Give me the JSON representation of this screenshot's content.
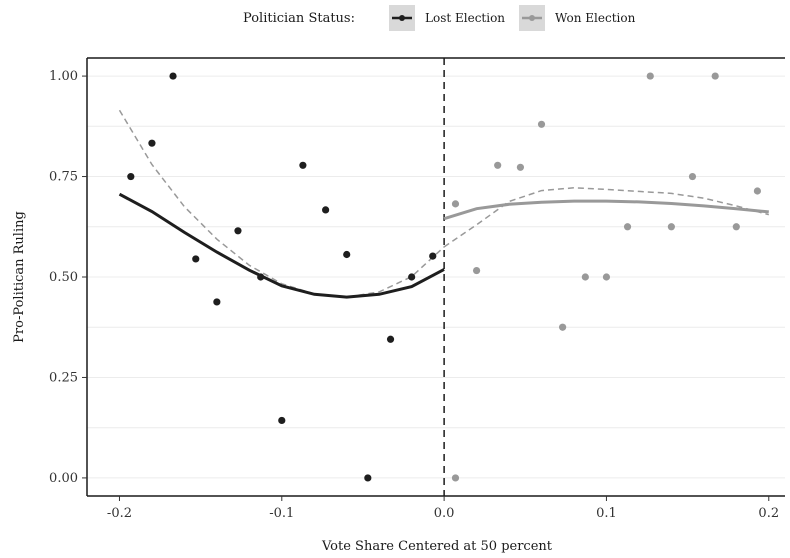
{
  "chart_data": {
    "type": "scatter",
    "title": "",
    "xlabel": "Vote Share Centered at 50 percent",
    "ylabel": "Pro-Politican Ruling",
    "xlim": [
      -0.22,
      0.21
    ],
    "ylim": [
      -0.045,
      1.045
    ],
    "x_ticks": [
      -0.2,
      -0.1,
      0.0,
      0.1,
      0.2
    ],
    "x_tick_labels": [
      "-0.2",
      "-0.1",
      "0.0",
      "0.1",
      "0.2"
    ],
    "y_ticks": [
      0.0,
      0.25,
      0.5,
      0.75,
      1.0
    ],
    "y_tick_labels": [
      "0.00",
      "0.25",
      "0.50",
      "0.75",
      "1.00"
    ],
    "cutoff": 0.0,
    "grid": "horizontal",
    "legend": {
      "position": "top",
      "title": "Politician Status:",
      "items": [
        {
          "label": "Lost Election",
          "color": "#1e1e1e"
        },
        {
          "label": "Won Election",
          "color": "#999999"
        }
      ]
    },
    "series": [
      {
        "name": "Lost Election",
        "color": "#1e1e1e",
        "points": [
          [
            -0.193,
            0.75
          ],
          [
            -0.18,
            0.833
          ],
          [
            -0.167,
            1.0
          ],
          [
            -0.153,
            0.545
          ],
          [
            -0.14,
            0.438
          ],
          [
            -0.127,
            0.615
          ],
          [
            -0.113,
            0.5
          ],
          [
            -0.1,
            0.143
          ],
          [
            -0.087,
            0.778
          ],
          [
            -0.073,
            0.667
          ],
          [
            -0.06,
            0.556
          ],
          [
            -0.047,
            0.0
          ],
          [
            -0.033,
            0.345
          ],
          [
            -0.02,
            0.5
          ],
          [
            -0.007,
            0.552
          ]
        ],
        "fit_solid": [
          [
            -0.2,
            0.706
          ],
          [
            -0.18,
            0.663
          ],
          [
            -0.16,
            0.611
          ],
          [
            -0.14,
            0.562
          ],
          [
            -0.12,
            0.517
          ],
          [
            -0.1,
            0.478
          ],
          [
            -0.08,
            0.457
          ],
          [
            -0.06,
            0.45
          ],
          [
            -0.04,
            0.457
          ],
          [
            -0.02,
            0.476
          ],
          [
            0.0,
            0.519
          ]
        ],
        "fit_dashed": [
          [
            -0.2,
            0.915
          ],
          [
            -0.18,
            0.78
          ],
          [
            -0.16,
            0.675
          ],
          [
            -0.14,
            0.594
          ],
          [
            -0.12,
            0.529
          ],
          [
            -0.1,
            0.483
          ],
          [
            -0.08,
            0.458
          ],
          [
            -0.06,
            0.45
          ],
          [
            -0.04,
            0.463
          ],
          [
            -0.02,
            0.501
          ],
          [
            0.0,
            0.575
          ]
        ]
      },
      {
        "name": "Won Election",
        "color": "#999999",
        "points": [
          [
            0.007,
            0.0
          ],
          [
            0.007,
            0.682
          ],
          [
            0.02,
            0.516
          ],
          [
            0.033,
            0.778
          ],
          [
            0.047,
            0.773
          ],
          [
            0.06,
            0.88
          ],
          [
            0.073,
            0.375
          ],
          [
            0.087,
            0.5
          ],
          [
            0.1,
            0.5
          ],
          [
            0.113,
            0.625
          ],
          [
            0.127,
            1.0
          ],
          [
            0.14,
            0.625
          ],
          [
            0.153,
            0.75
          ],
          [
            0.167,
            1.0
          ],
          [
            0.18,
            0.625
          ],
          [
            0.193,
            0.714
          ]
        ],
        "fit_solid": [
          [
            0.0,
            0.645
          ],
          [
            0.02,
            0.67
          ],
          [
            0.04,
            0.681
          ],
          [
            0.06,
            0.686
          ],
          [
            0.08,
            0.689
          ],
          [
            0.1,
            0.689
          ],
          [
            0.12,
            0.687
          ],
          [
            0.14,
            0.683
          ],
          [
            0.16,
            0.677
          ],
          [
            0.18,
            0.67
          ],
          [
            0.2,
            0.662
          ]
        ],
        "fit_dashed": [
          [
            0.0,
            0.575
          ],
          [
            0.02,
            0.63
          ],
          [
            0.04,
            0.688
          ],
          [
            0.06,
            0.715
          ],
          [
            0.08,
            0.722
          ],
          [
            0.1,
            0.718
          ],
          [
            0.12,
            0.713
          ],
          [
            0.14,
            0.708
          ],
          [
            0.16,
            0.696
          ],
          [
            0.18,
            0.677
          ],
          [
            0.2,
            0.655
          ]
        ]
      }
    ]
  }
}
